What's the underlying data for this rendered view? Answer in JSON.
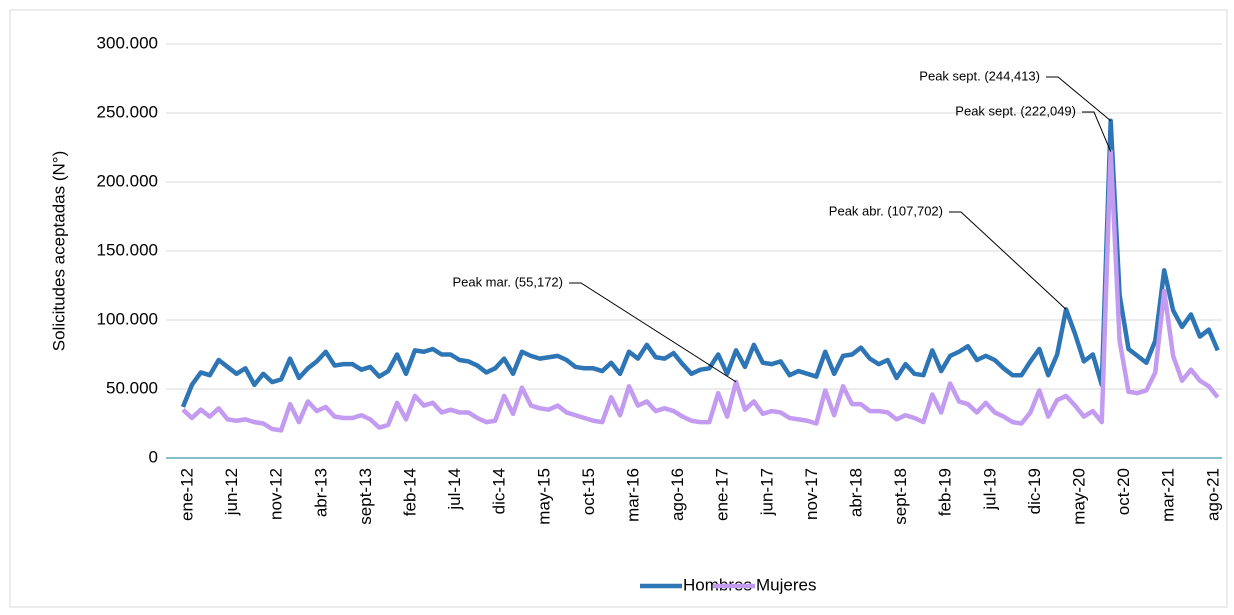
{
  "chart_data": {
    "type": "line",
    "y_label": "Solicitudes aceptadas (N°)",
    "categories": [
      "ene-12",
      null,
      null,
      null,
      null,
      "jun-12",
      null,
      null,
      null,
      null,
      "nov-12",
      null,
      null,
      null,
      null,
      "abr-13",
      null,
      null,
      null,
      null,
      "sept-13",
      null,
      null,
      null,
      null,
      "feb-14",
      null,
      null,
      null,
      null,
      "jul-14",
      null,
      null,
      null,
      null,
      "dic-14",
      null,
      null,
      null,
      null,
      "may-15",
      null,
      null,
      null,
      null,
      "oct-15",
      null,
      null,
      null,
      null,
      "mar-16",
      null,
      null,
      null,
      null,
      "ago-16",
      null,
      null,
      null,
      null,
      "ene-17",
      null,
      null,
      null,
      null,
      "jun-17",
      null,
      null,
      null,
      null,
      "nov-17",
      null,
      null,
      null,
      null,
      "abr-18",
      null,
      null,
      null,
      null,
      "sept-18",
      null,
      null,
      null,
      null,
      "feb-19",
      null,
      null,
      null,
      null,
      "jul-19",
      null,
      null,
      null,
      null,
      "dic-19",
      null,
      null,
      null,
      null,
      "may-20",
      null,
      null,
      null,
      null,
      "oct-20",
      null,
      null,
      null,
      null,
      "mar-21",
      null,
      null,
      null,
      null,
      "ago-21",
      null
    ],
    "series": [
      {
        "name": "Hombres",
        "color": "#2e75b6",
        "values": [
          37000,
          53000,
          62000,
          60000,
          71000,
          66000,
          61000,
          65000,
          53000,
          61000,
          55000,
          57000,
          72000,
          58000,
          65000,
          70000,
          77000,
          67000,
          68000,
          68000,
          64000,
          66000,
          59000,
          63000,
          75000,
          61000,
          78000,
          77000,
          79000,
          75000,
          75000,
          71000,
          70000,
          67000,
          62000,
          65000,
          72000,
          61000,
          77000,
          74000,
          72000,
          73000,
          74000,
          71000,
          66000,
          65000,
          65000,
          63000,
          69000,
          61000,
          77000,
          72000,
          82000,
          73000,
          72000,
          76000,
          68000,
          61000,
          64000,
          65000,
          75000,
          61000,
          78000,
          66000,
          82000,
          69000,
          68000,
          70000,
          60000,
          63000,
          61000,
          59000,
          77000,
          61000,
          74000,
          75000,
          80000,
          72000,
          68000,
          71000,
          58000,
          68000,
          61000,
          60000,
          78000,
          63000,
          74000,
          77000,
          81000,
          71000,
          74000,
          71000,
          65000,
          60000,
          60000,
          70000,
          79000,
          60000,
          75000,
          107702,
          90000,
          70000,
          75000,
          53000,
          244413,
          118000,
          79000,
          74000,
          69000,
          85000,
          136000,
          107000,
          95000,
          104000,
          88000,
          93000,
          78000
        ]
      },
      {
        "name": "Mujeres",
        "color": "#c39bf0",
        "values": [
          35000,
          29000,
          35000,
          30000,
          36000,
          28000,
          27000,
          28000,
          26000,
          25000,
          21000,
          20000,
          39000,
          26000,
          41000,
          34000,
          37000,
          30000,
          29000,
          29000,
          31000,
          28000,
          22000,
          24000,
          40000,
          28000,
          45000,
          38000,
          40000,
          33000,
          35000,
          33000,
          33000,
          29000,
          26000,
          27000,
          45000,
          32000,
          51000,
          38000,
          36000,
          35000,
          38000,
          33000,
          31000,
          29000,
          27000,
          26000,
          44000,
          31000,
          52000,
          38000,
          41000,
          34000,
          36000,
          34000,
          30000,
          27000,
          26000,
          26000,
          47000,
          30000,
          55172,
          35000,
          41000,
          32000,
          34000,
          33000,
          29000,
          28000,
          27000,
          25000,
          49000,
          31000,
          52000,
          39000,
          39000,
          34000,
          34000,
          33000,
          28000,
          31000,
          29000,
          26000,
          46000,
          33000,
          54000,
          41000,
          39000,
          33000,
          40000,
          33000,
          30000,
          26000,
          25000,
          33000,
          49000,
          30000,
          42000,
          45000,
          38000,
          30000,
          34000,
          26000,
          222049,
          85000,
          48000,
          47000,
          49000,
          62000,
          121000,
          74000,
          56000,
          64000,
          56000,
          52000,
          44000
        ]
      }
    ],
    "ylim": [
      0,
      300000
    ],
    "yticks": [
      0,
      {
        "value": 50000,
        "label": "50.000"
      },
      {
        "value": 100000,
        "label": "100.000"
      },
      {
        "value": 150000,
        "label": "150.000"
      },
      {
        "value": 200000,
        "label": "200.000"
      },
      {
        "value": 250000,
        "label": "250.000"
      },
      {
        "value": 300000,
        "label": "300.000"
      }
    ],
    "grid": true,
    "legend": "bottom",
    "annotations": [
      "Peak sept. (244,413)",
      "Peak sept. (222,049)",
      "Peak abr. (107,702)",
      "Peak mar. (55,172)"
    ]
  }
}
